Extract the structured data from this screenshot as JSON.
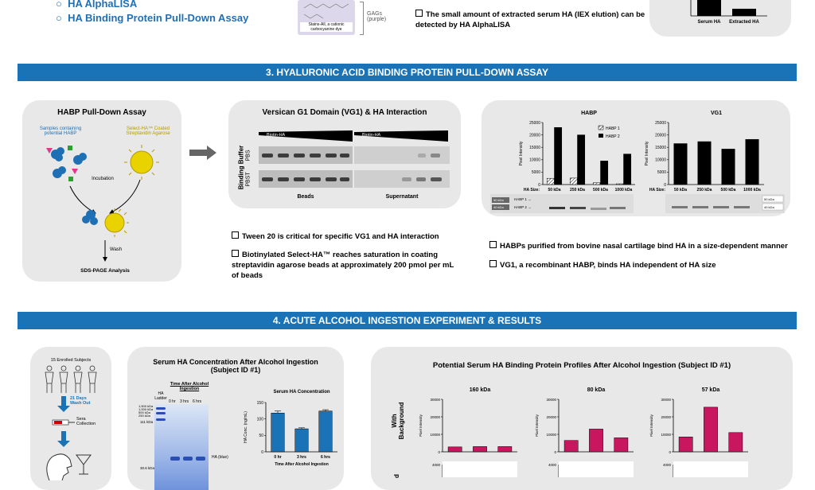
{
  "top": {
    "bullets": [
      "HA AlphaLISA",
      "HA Binding Protein Pull-Down Assay"
    ],
    "stains_all_label": "Stains-All, a cationic carbocyanine dye",
    "gags_label": "GAGs (purple)",
    "check_text": "The small amount of extracted serum HA (IEX elution) can be detected by HA AlphaLISA",
    "mini_chart_x": [
      "Serum HA",
      "Extracted HA"
    ]
  },
  "section3": {
    "title": "3.  HYALURONIC ACID BINDING PROTEIN PULL-DOWN ASSAY",
    "habp_panel": {
      "title": "HABP Pull-Down Assay",
      "samples": "Samples containing potential HABP",
      "beads": "Select-HA™ Coated Streptavidin Agarose",
      "incubation": "Incubation",
      "wash": "Wash",
      "analysis": "SDS-PAGE Analysis"
    },
    "vg1_panel": {
      "title": "Versican G1 Domain (VG1) & HA Interaction",
      "binding_buffer": "Binding Buffer",
      "pbs": "PBS",
      "pbst": "PBST",
      "biotin_ha": "Biotin-HA",
      "beads": "Beads",
      "supernatant": "Supernatant"
    },
    "checks_left": [
      "Tween 20 is critical for specific VG1 and HA interaction",
      "Biotinylated Select-HA™ reaches saturation in coating streptavidin agarose beads at approximately 200 pmol per mL of beads"
    ],
    "checks_right": [
      "HABPs purified from bovine nasal cartilage bind HA in a size-dependent manner",
      "VG1, a recombinant HABP, binds HA independent of HA size"
    ],
    "gel_labels": {
      "habp1": "HABP 1",
      "habp2": "HABP 2",
      "kda50": "50 kDa",
      "kda40": "40 kDa"
    }
  },
  "section4": {
    "title": "4.  ACUTE ALCOHOL INGESTION EXPERIMENT & RESULTS",
    "subjects": {
      "enrolled": "15 Enrolled Subjects",
      "washout": "21 Days Wash Out",
      "sera": "Sera Collection"
    },
    "serum_panel": {
      "title": "Serum HA Concentration After Alcohol Ingestion (Subject ID #1)",
      "gel_title": "Time After Alcohol Ingestion",
      "ha_ladder": "HA Ladder",
      "lanes": [
        "0 hr",
        "3 hrs",
        "6 hrs"
      ],
      "ladder_marks": [
        "1,500 kDa",
        "1,000 kDa",
        "500 kDa",
        "250 kDa",
        "111 kDa",
        "30.6 kDa"
      ],
      "ha_blue": "HA (blue)"
    },
    "profile_panel": {
      "title": "Potential Serum HA Binding Protein Profiles After Alcohol Ingestion (Subject ID #1)",
      "row_label": "With Background",
      "row_label2": "d",
      "col_titles": [
        "160 kDa",
        "80 kDa",
        "57 kDa"
      ]
    }
  },
  "chart_data": [
    {
      "type": "bar",
      "title": "",
      "categories": [
        "Serum HA",
        "Extracted HA"
      ],
      "values": [
        null,
        null
      ],
      "colors": [
        "#000000",
        "#000000"
      ],
      "xlabel": "",
      "ylabel": ""
    },
    {
      "type": "bar",
      "title": "HABP",
      "categories": [
        "50 kDa",
        "250 kDa",
        "500 kDa",
        "1000 kDa"
      ],
      "x_prefix": "HA Size:",
      "ylabel": "Pixel Intensity",
      "ylim": [
        0,
        25000
      ],
      "yticks": [
        "0",
        "5000",
        "10000",
        "15000",
        "20000",
        "25000"
      ],
      "legend": "top-right",
      "series": [
        {
          "name": "HABP 1",
          "values": [
            2500,
            2600,
            700,
            300
          ],
          "pattern": "hatched"
        },
        {
          "name": "HABP 2",
          "values": [
            23000,
            20000,
            9500,
            12300
          ],
          "pattern": "solid"
        }
      ]
    },
    {
      "type": "bar",
      "title": "VG1",
      "categories": [
        "50 kDa",
        "250 kDa",
        "500 kDa",
        "1000 kDa"
      ],
      "x_prefix": "HA Size:",
      "ylabel": "Pixel Intensity",
      "ylim": [
        0,
        25000
      ],
      "yticks": [
        "0",
        "5000",
        "10000",
        "15000",
        "20000",
        "25000"
      ],
      "values": [
        16500,
        17300,
        14300,
        18200
      ]
    },
    {
      "type": "bar",
      "title": "Serum HA Concentration",
      "categories": [
        "0 hr",
        "3 hrs",
        "6 hrs"
      ],
      "xlabel": "Time After Alcohol Ingestion",
      "ylabel": "HA Conc. (ng/mL)",
      "ylim": [
        0,
        150
      ],
      "yticks": [
        "0",
        "50",
        "100",
        "150"
      ],
      "values": [
        118,
        70,
        124
      ],
      "color": "#1a73b6"
    },
    {
      "type": "bar",
      "title": "160 kDa",
      "ylabel": "Pixel Intensity",
      "ylim": [
        0,
        30000
      ],
      "yticks": [
        "0",
        "10000",
        "20000",
        "30000"
      ],
      "values": [
        2800,
        3000,
        3000
      ],
      "color": "#c8175f"
    },
    {
      "type": "bar",
      "title": "80 kDa",
      "ylabel": "Pixel Intensity",
      "ylim": [
        0,
        30000
      ],
      "yticks": [
        "0",
        "10000",
        "20000",
        "30000"
      ],
      "values": [
        6500,
        13000,
        8000
      ],
      "color": "#c8175f"
    },
    {
      "type": "bar",
      "title": "57 kDa",
      "ylabel": "Pixel Intensity",
      "ylim": [
        0,
        30000
      ],
      "yticks": [
        "0",
        "10000",
        "20000",
        "30000"
      ],
      "values": [
        8500,
        25500,
        11000
      ],
      "color": "#c8175f"
    }
  ]
}
